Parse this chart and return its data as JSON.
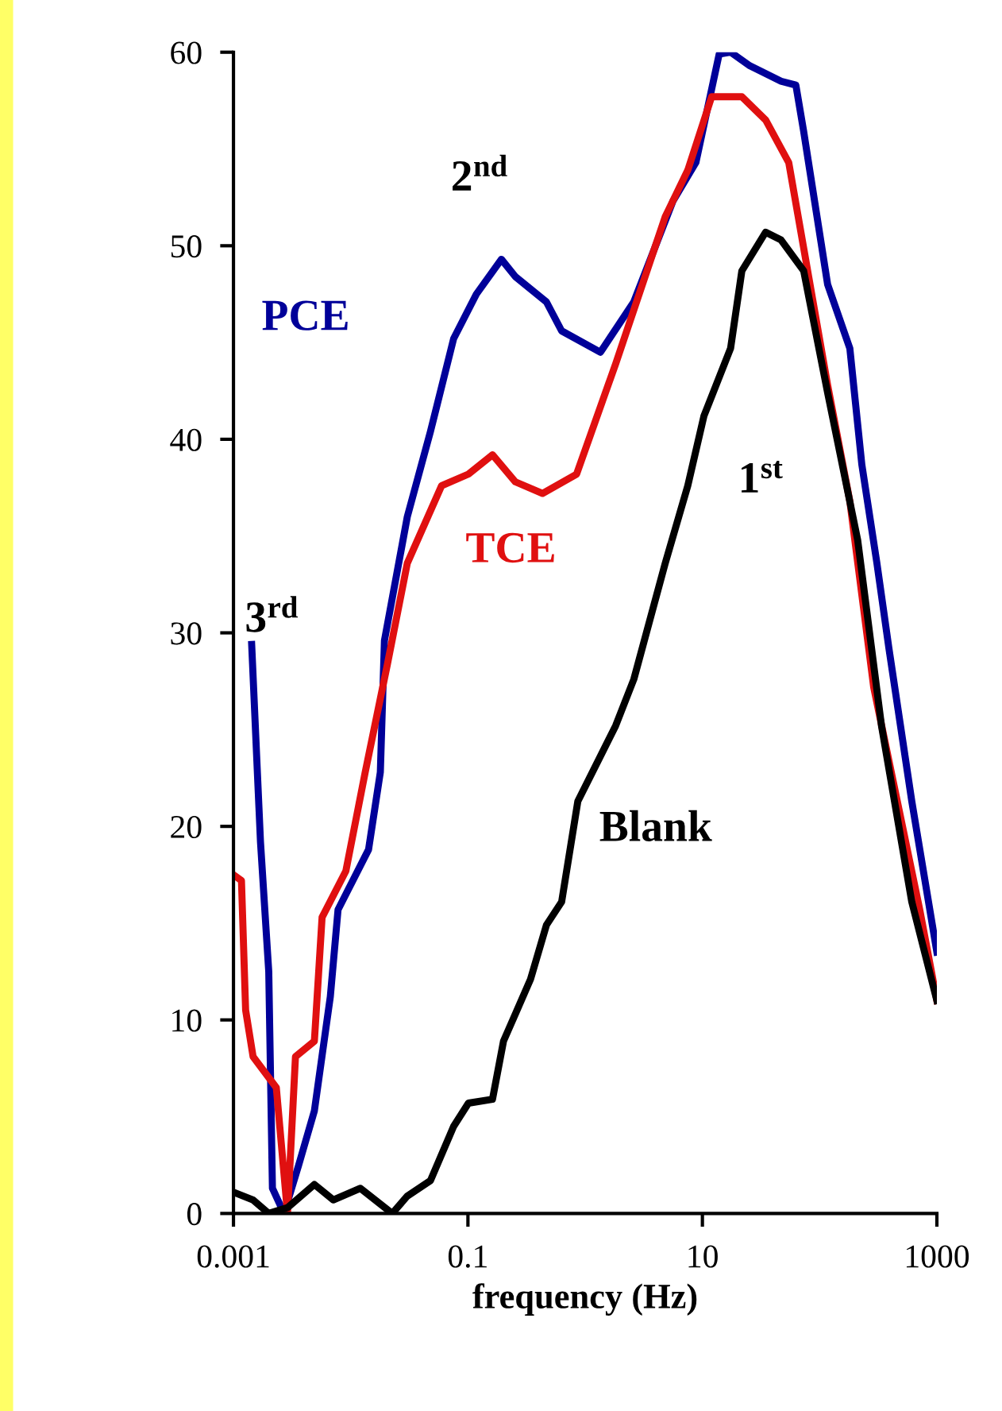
{
  "chart_data": {
    "type": "line",
    "xlabel": "frequency (Hz)",
    "log": "x",
    "xlim": [
      0.001,
      1000
    ],
    "xticks": [
      0.001,
      0.1,
      10,
      1000
    ],
    "ylim": [
      0,
      60
    ],
    "yticks": [
      0,
      10,
      20,
      30,
      40,
      50,
      60
    ],
    "grid": false,
    "legend": false,
    "marker": "none",
    "line_style": "solid",
    "series": [
      {
        "name": "PCE",
        "color": "#000099",
        "x": [
          0.00143,
          0.0017,
          0.002,
          0.00215,
          0.0027,
          0.0036,
          0.0049,
          0.0067,
          0.0078,
          0.0142,
          0.0179,
          0.0194,
          0.0304,
          0.0479,
          0.0755,
          0.118,
          0.193,
          0.254,
          0.467,
          0.63,
          1.35,
          2.6,
          5.6,
          8.8,
          13.9,
          17.4,
          25.4,
          46.9,
          62.7,
          73.1,
          117,
          181,
          229,
          308,
          390,
          611,
          1000
        ],
        "values": [
          29.4,
          19.2,
          12.5,
          1.3,
          0,
          2.5,
          5.3,
          11.2,
          15.7,
          18.8,
          22.8,
          29.6,
          36,
          40.4,
          45.2,
          47.5,
          49.3,
          48.4,
          47.1,
          45.6,
          44.5,
          47.1,
          52.3,
          54.3,
          59.9,
          60,
          59.3,
          58.5,
          58.3,
          55.9,
          48,
          44.7,
          38.7,
          33.6,
          29.2,
          21.3,
          13.5
        ]
      },
      {
        "name": "TCE",
        "color": "#e01010",
        "x": [
          0.001,
          0.00117,
          0.00127,
          0.00147,
          0.00232,
          0.00289,
          0.00338,
          0.0049,
          0.0057,
          0.0091,
          0.0133,
          0.0206,
          0.0304,
          0.0596,
          0.101,
          0.162,
          0.254,
          0.433,
          0.845,
          1.82,
          4.82,
          7.5,
          12,
          21.7,
          34.6,
          54.5,
          117,
          181,
          289,
          714,
          1000
        ],
        "values": [
          17.5,
          17.2,
          10.5,
          8.1,
          6.5,
          0,
          8.1,
          8.9,
          15.3,
          17.7,
          22.8,
          28.4,
          33.6,
          37.6,
          38.2,
          39.2,
          37.8,
          37.2,
          38.2,
          43.9,
          51.5,
          53.9,
          57.7,
          57.7,
          56.5,
          54.3,
          42.8,
          36.8,
          27.2,
          15.7,
          11
        ]
      },
      {
        "name": "Blank",
        "color": "#000000",
        "x": [
          0.001,
          0.00147,
          0.002,
          0.00289,
          0.0049,
          0.0071,
          0.0121,
          0.0226,
          0.0304,
          0.0479,
          0.0755,
          0.101,
          0.162,
          0.201,
          0.342,
          0.467,
          0.63,
          0.866,
          1.82,
          2.6,
          4.82,
          7.5,
          10.3,
          17.4,
          21.7,
          34.6,
          46.9,
          73.1,
          117,
          211,
          337,
          611,
          1000
        ],
        "values": [
          1.1,
          0.7,
          0,
          0.3,
          1.5,
          0.7,
          1.3,
          0,
          0.9,
          1.7,
          4.5,
          5.7,
          5.9,
          8.9,
          12.1,
          14.9,
          16.1,
          21.3,
          25.2,
          27.6,
          33.6,
          37.6,
          41.2,
          44.7,
          48.7,
          50.7,
          50.3,
          48.7,
          42.4,
          34.8,
          25.2,
          16.1,
          11
        ]
      }
    ],
    "annotations": [
      "3$^{rd}$",
      "2$^{nd}$",
      "1$^{st}$"
    ]
  }
}
